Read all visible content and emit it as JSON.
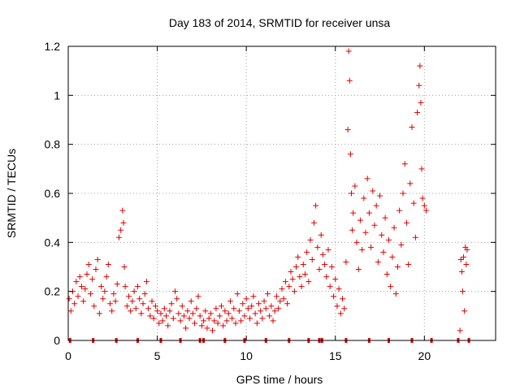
{
  "chart_data": {
    "type": "scatter",
    "title": "Day 183 of 2014, SRMTID for receiver unsa",
    "xlabel": "GPS time / hours",
    "ylabel": "SRMTID / TECUs",
    "xlim": [
      0,
      24
    ],
    "ylim": [
      0,
      1.2
    ],
    "x_ticks": [
      0,
      5,
      10,
      15,
      20
    ],
    "x_tick_labels": [
      "0",
      "5",
      "10",
      "15",
      "20"
    ],
    "y_ticks": [
      0,
      0.2,
      0.4,
      0.6,
      0.8,
      1.0,
      1.2
    ],
    "y_tick_labels": [
      "0",
      "0.2",
      "0.4",
      "0.6",
      "0.8",
      "1",
      "1.2"
    ],
    "grid": true,
    "marker": "plus",
    "color": "#e00000",
    "series": [
      {
        "name": "SRMTID",
        "points": [
          [
            0.05,
            0.17
          ],
          [
            0.15,
            0.12
          ],
          [
            0.25,
            0.2
          ],
          [
            0.35,
            0.15
          ],
          [
            0.45,
            0.24
          ],
          [
            0.55,
            0.18
          ],
          [
            0.65,
            0.26
          ],
          [
            0.75,
            0.22
          ],
          [
            0.85,
            0.16
          ],
          [
            0.95,
            0.21
          ],
          [
            1.05,
            0.27
          ],
          [
            1.15,
            0.31
          ],
          [
            1.25,
            0.19
          ],
          [
            1.35,
            0.25
          ],
          [
            1.45,
            0.14
          ],
          [
            1.55,
            0.29
          ],
          [
            1.65,
            0.33
          ],
          [
            1.75,
            0.11
          ],
          [
            1.85,
            0.22
          ],
          [
            1.95,
            0.17
          ],
          [
            2.05,
            0.2
          ],
          [
            2.15,
            0.26
          ],
          [
            2.25,
            0.31
          ],
          [
            2.35,
            0.15
          ],
          [
            2.45,
            0.12
          ],
          [
            2.55,
            0.19
          ],
          [
            2.65,
            0.16
          ],
          [
            2.75,
            0.23
          ],
          [
            2.85,
            0.42
          ],
          [
            2.95,
            0.45
          ],
          [
            3.05,
            0.53
          ],
          [
            3.1,
            0.48
          ],
          [
            3.15,
            0.3
          ],
          [
            3.2,
            0.22
          ],
          [
            3.3,
            0.14
          ],
          [
            3.4,
            0.18
          ],
          [
            3.5,
            0.12
          ],
          [
            3.6,
            0.16
          ],
          [
            3.7,
            0.2
          ],
          [
            3.8,
            0.13
          ],
          [
            3.9,
            0.22
          ],
          [
            4.0,
            0.17
          ],
          [
            4.1,
            0.11
          ],
          [
            4.2,
            0.15
          ],
          [
            4.3,
            0.19
          ],
          [
            4.4,
            0.24
          ],
          [
            4.5,
            0.13
          ],
          [
            4.6,
            0.1
          ],
          [
            4.7,
            0.16
          ],
          [
            4.8,
            0.09
          ],
          [
            4.9,
            0.14
          ],
          [
            5.0,
            0.12
          ],
          [
            5.1,
            0.07
          ],
          [
            5.2,
            0.11
          ],
          [
            5.3,
            0.08
          ],
          [
            5.4,
            0.13
          ],
          [
            5.5,
            0.1
          ],
          [
            5.6,
            0.06
          ],
          [
            5.7,
            0.12
          ],
          [
            5.8,
            0.15
          ],
          [
            5.9,
            0.09
          ],
          [
            6.0,
            0.2
          ],
          [
            6.1,
            0.17
          ],
          [
            6.2,
            0.11
          ],
          [
            6.3,
            0.08
          ],
          [
            6.4,
            0.14
          ],
          [
            6.5,
            0.1
          ],
          [
            6.6,
            0.05
          ],
          [
            6.7,
            0.12
          ],
          [
            6.8,
            0.09
          ],
          [
            6.9,
            0.16
          ],
          [
            7.0,
            0.11
          ],
          [
            7.1,
            0.07
          ],
          [
            7.2,
            0.13
          ],
          [
            7.3,
            0.18
          ],
          [
            7.4,
            0.1
          ],
          [
            7.5,
            0.06
          ],
          [
            7.6,
            0.08
          ],
          [
            7.7,
            0.12
          ],
          [
            7.8,
            0.05
          ],
          [
            7.9,
            0.09
          ],
          [
            8.0,
            0.11
          ],
          [
            8.1,
            0.04
          ],
          [
            8.2,
            0.08
          ],
          [
            8.3,
            0.13
          ],
          [
            8.4,
            0.07
          ],
          [
            8.5,
            0.1
          ],
          [
            8.6,
            0.14
          ],
          [
            8.7,
            0.06
          ],
          [
            8.8,
            0.12
          ],
          [
            8.9,
            0.08
          ],
          [
            9.0,
            0.11
          ],
          [
            9.1,
            0.16
          ],
          [
            9.2,
            0.09
          ],
          [
            9.3,
            0.13
          ],
          [
            9.4,
            0.07
          ],
          [
            9.5,
            0.19
          ],
          [
            9.6,
            0.12
          ],
          [
            9.7,
            0.08
          ],
          [
            9.8,
            0.15
          ],
          [
            9.9,
            0.1
          ],
          [
            10.0,
            0.17
          ],
          [
            10.1,
            0.13
          ],
          [
            10.2,
            0.09
          ],
          [
            10.3,
            0.14
          ],
          [
            10.4,
            0.18
          ],
          [
            10.5,
            0.11
          ],
          [
            10.6,
            0.07
          ],
          [
            10.7,
            0.15
          ],
          [
            10.8,
            0.12
          ],
          [
            10.9,
            0.09
          ],
          [
            11.0,
            0.16
          ],
          [
            11.1,
            0.13
          ],
          [
            11.2,
            0.19
          ],
          [
            11.3,
            0.1
          ],
          [
            11.4,
            0.14
          ],
          [
            11.5,
            0.08
          ],
          [
            11.6,
            0.12
          ],
          [
            11.7,
            0.18
          ],
          [
            11.8,
            0.13
          ],
          [
            11.9,
            0.16
          ],
          [
            12.0,
            0.21
          ],
          [
            12.1,
            0.17
          ],
          [
            12.2,
            0.24
          ],
          [
            12.3,
            0.15
          ],
          [
            12.4,
            0.22
          ],
          [
            12.5,
            0.28
          ],
          [
            12.6,
            0.25
          ],
          [
            12.7,
            0.2
          ],
          [
            12.8,
            0.3
          ],
          [
            12.9,
            0.34
          ],
          [
            13.0,
            0.26
          ],
          [
            13.1,
            0.22
          ],
          [
            13.2,
            0.31
          ],
          [
            13.3,
            0.27
          ],
          [
            13.4,
            0.36
          ],
          [
            13.5,
            0.24
          ],
          [
            13.6,
            0.41
          ],
          [
            13.7,
            0.33
          ],
          [
            13.8,
            0.48
          ],
          [
            13.9,
            0.55
          ],
          [
            14.0,
            0.38
          ],
          [
            14.1,
            0.29
          ],
          [
            14.2,
            0.43
          ],
          [
            14.3,
            0.35
          ],
          [
            14.4,
            0.31
          ],
          [
            14.5,
            0.26
          ],
          [
            14.6,
            0.37
          ],
          [
            14.7,
            0.22
          ],
          [
            14.8,
            0.3
          ],
          [
            14.9,
            0.18
          ],
          [
            15.0,
            0.25
          ],
          [
            15.1,
            0.14
          ],
          [
            15.2,
            0.21
          ],
          [
            15.3,
            0.11
          ],
          [
            15.4,
            0.17
          ],
          [
            15.5,
            0.13
          ],
          [
            15.6,
            0.32
          ],
          [
            15.7,
            0.86
          ],
          [
            15.75,
            1.18
          ],
          [
            15.8,
            1.06
          ],
          [
            15.85,
            0.76
          ],
          [
            15.9,
            0.6
          ],
          [
            15.95,
            0.45
          ],
          [
            16.0,
            0.52
          ],
          [
            16.1,
            0.63
          ],
          [
            16.2,
            0.4
          ],
          [
            16.3,
            0.29
          ],
          [
            16.4,
            0.49
          ],
          [
            16.5,
            0.37
          ],
          [
            16.6,
            0.58
          ],
          [
            16.7,
            0.44
          ],
          [
            16.8,
            0.66
          ],
          [
            16.9,
            0.52
          ],
          [
            17.0,
            0.38
          ],
          [
            17.1,
            0.61
          ],
          [
            17.2,
            0.47
          ],
          [
            17.3,
            0.55
          ],
          [
            17.4,
            0.32
          ],
          [
            17.5,
            0.59
          ],
          [
            17.6,
            0.43
          ],
          [
            17.7,
            0.36
          ],
          [
            17.8,
            0.5
          ],
          [
            17.9,
            0.27
          ],
          [
            18.0,
            0.41
          ],
          [
            18.1,
            0.22
          ],
          [
            18.2,
            0.34
          ],
          [
            18.3,
            0.46
          ],
          [
            18.4,
            0.19
          ],
          [
            18.5,
            0.3
          ],
          [
            18.6,
            0.53
          ],
          [
            18.7,
            0.39
          ],
          [
            18.8,
            0.6
          ],
          [
            18.9,
            0.72
          ],
          [
            19.0,
            0.48
          ],
          [
            19.1,
            0.31
          ],
          [
            19.2,
            0.64
          ],
          [
            19.3,
            0.87
          ],
          [
            19.4,
            0.56
          ],
          [
            19.5,
            0.42
          ],
          [
            19.6,
            0.93
          ],
          [
            19.7,
            1.04
          ],
          [
            19.75,
            1.12
          ],
          [
            19.8,
            0.97
          ],
          [
            19.85,
            0.7
          ],
          [
            19.9,
            0.58
          ],
          [
            20.0,
            0.55
          ],
          [
            20.1,
            0.53
          ],
          [
            22.0,
            0.04
          ],
          [
            22.05,
            0.33
          ],
          [
            22.1,
            0.28
          ],
          [
            22.15,
            0.2
          ],
          [
            22.2,
            0.34
          ],
          [
            22.25,
            0.12
          ],
          [
            22.3,
            0.38
          ],
          [
            22.35,
            0.31
          ],
          [
            22.4,
            0.37
          ]
        ]
      }
    ],
    "zero_markers": [
      0.1,
      1.4,
      2.7,
      3.9,
      5.2,
      6.3,
      7.4,
      7.6,
      8.8,
      9.9,
      11.1,
      12.4,
      13.5,
      14.1,
      14.25,
      15.6,
      16.9,
      18.0,
      19.3,
      20.4,
      21.9,
      22.5
    ]
  }
}
